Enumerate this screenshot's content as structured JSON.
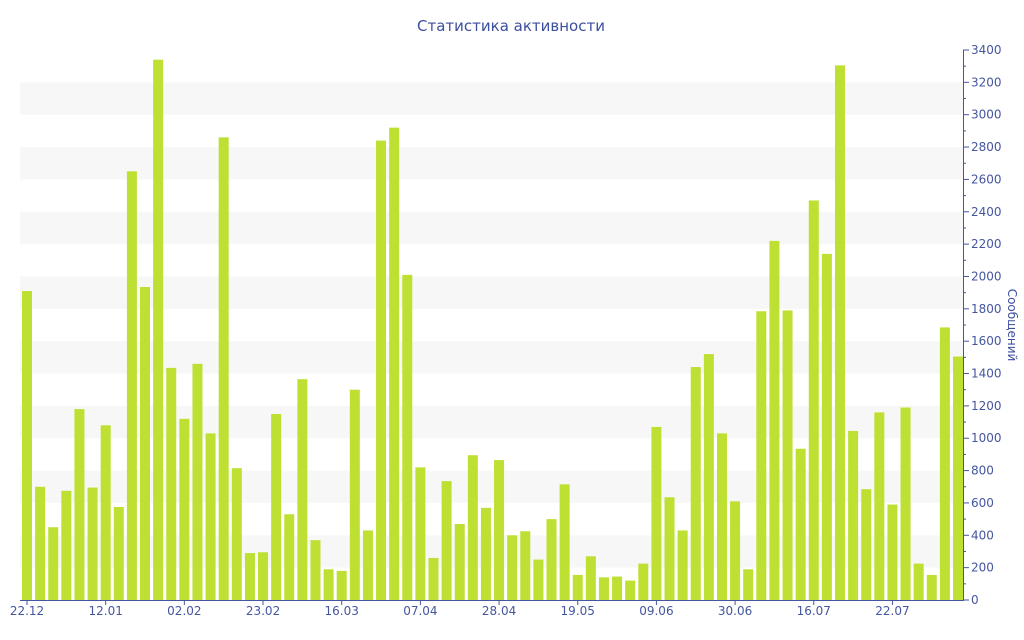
{
  "chart_data": {
    "type": "bar",
    "title": "Статистика активности",
    "xlabel": "",
    "ylabel": "Сообщений",
    "ylim": [
      0,
      3400
    ],
    "y_ticks": [
      0,
      200,
      400,
      600,
      800,
      1000,
      1200,
      1400,
      1600,
      1800,
      2000,
      2200,
      2400,
      2600,
      2800,
      3000,
      3200,
      3400
    ],
    "y_axis_side": "right",
    "grid": "alternating horizontal bands",
    "x_tick_labels": [
      {
        "bar_index": 0,
        "label": "22.12"
      },
      {
        "bar_index": 6,
        "label": "12.01"
      },
      {
        "bar_index": 12,
        "label": "02.02"
      },
      {
        "bar_index": 18,
        "label": "23.02"
      },
      {
        "bar_index": 24,
        "label": "16.03"
      },
      {
        "bar_index": 30,
        "label": "07.04"
      },
      {
        "bar_index": 36,
        "label": "28.04"
      },
      {
        "bar_index": 42,
        "label": "19.05"
      },
      {
        "bar_index": 48,
        "label": "09.06"
      },
      {
        "bar_index": 54,
        "label": "30.06"
      },
      {
        "bar_index": 60,
        "label": "16.07"
      },
      {
        "bar_index": 66,
        "label": "22.07"
      }
    ],
    "values": [
      1910,
      700,
      450,
      675,
      1180,
      695,
      1080,
      575,
      2650,
      1935,
      3340,
      1435,
      1120,
      1460,
      1030,
      2860,
      815,
      290,
      295,
      1150,
      530,
      1365,
      370,
      190,
      180,
      1300,
      430,
      2840,
      2920,
      2010,
      820,
      260,
      735,
      470,
      895,
      570,
      865,
      400,
      425,
      250,
      500,
      715,
      155,
      270,
      140,
      145,
      120,
      225,
      1070,
      635,
      430,
      1440,
      1520,
      1030,
      610,
      190,
      1785,
      2220,
      1790,
      935,
      2470,
      2140,
      3305,
      1045,
      685,
      1160,
      590,
      1190,
      225,
      155,
      1685,
      1505
    ],
    "colors": {
      "bar": "#bde032",
      "band": "#f7f7f7",
      "axis": "#4556a0",
      "title": "#3d4f9f"
    }
  }
}
